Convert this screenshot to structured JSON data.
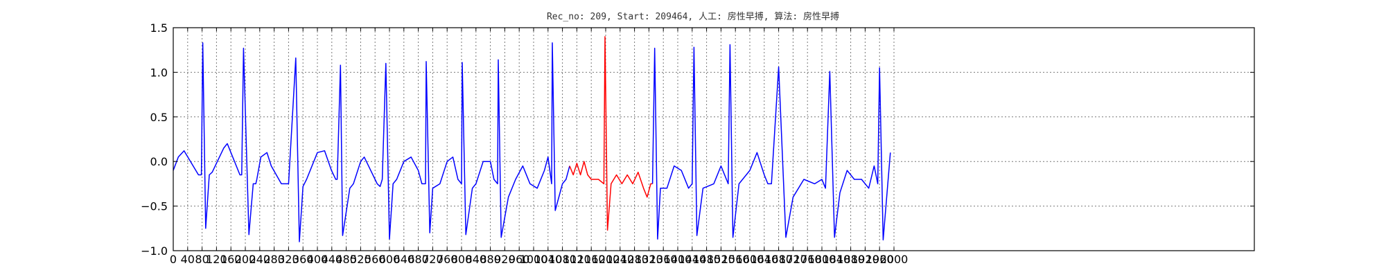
{
  "chart_data": {
    "type": "line",
    "title": "Rec_no: 209, Start: 209464, 人工: 房性早搏, 算法: 房性早搏",
    "xlabel": "",
    "ylabel": "",
    "xlim": [
      0,
      3000
    ],
    "ylim": [
      -1.0,
      1.5
    ],
    "grid": true,
    "y_ticks": [
      -1.0,
      -0.5,
      0.0,
      0.5,
      1.0,
      1.5
    ],
    "y_tick_labels": [
      "−1.0",
      "−0.5",
      "0.0",
      "0.5",
      "1.0",
      "1.5"
    ],
    "x_tick_step": 40,
    "x_ticks_end": 2000,
    "signal_length": 2000,
    "colors": {
      "normal": "#0000ff",
      "highlight": "#ff0000"
    },
    "series": [
      {
        "color": "#0000ff",
        "x": [
          0,
          14,
          30,
          70,
          78,
          82,
          90,
          100,
          108,
          140,
          150,
          160,
          185,
          190,
          195,
          210,
          222,
          229,
          232,
          243,
          260,
          272,
          300,
          320,
          340,
          350,
          360,
          370,
          400,
          420,
          439,
          451,
          455,
          464,
          470,
          490,
          500,
          520,
          530,
          560,
          566,
          574,
          580,
          590,
          600,
          610,
          620,
          640
        ],
        "y": [
          -0.1,
          0.05,
          0.12,
          -0.15,
          -0.15,
          1.33,
          -0.75,
          -0.15,
          -0.12,
          0.15,
          0.2,
          0.1,
          -0.15,
          -0.15,
          1.27,
          -0.82,
          -0.25,
          -0.25,
          -0.2,
          0.05,
          0.1,
          -0.05,
          -0.25,
          -0.25,
          1.16,
          -0.9,
          -0.28,
          -0.2,
          0.1,
          0.12,
          -0.1,
          -0.2,
          -0.2,
          1.08,
          -0.83,
          -0.3,
          -0.25,
          0.0,
          0.05,
          -0.2,
          -0.25,
          -0.28,
          -0.2,
          1.1,
          -0.87,
          -0.25,
          -0.2,
          0.0
        ]
      },
      {
        "color": "#0000ff",
        "x": [
          640,
          660,
          680,
          690,
          700,
          702,
          712,
          720,
          740,
          760,
          776,
          790,
          800,
          802,
          812,
          830,
          840,
          860,
          880,
          890,
          900,
          902,
          910,
          930,
          950,
          970,
          990,
          1010,
          1030,
          1040,
          1050,
          1052,
          1060,
          1080,
          1090,
          1100
        ],
        "y": [
          0.0,
          0.05,
          -0.1,
          -0.25,
          -0.25,
          1.12,
          -0.8,
          -0.3,
          -0.25,
          0.0,
          0.05,
          -0.2,
          -0.25,
          1.11,
          -0.82,
          -0.3,
          -0.25,
          0.0,
          0.0,
          -0.2,
          -0.25,
          1.14,
          -0.85,
          -0.4,
          -0.2,
          -0.05,
          -0.25,
          -0.3,
          -0.1,
          0.05,
          -0.25,
          1.33,
          -0.55,
          -0.25,
          -0.2,
          -0.05
        ]
      },
      {
        "color": "#ff0000",
        "x": [
          1100,
          1110,
          1120,
          1130,
          1140,
          1150,
          1160,
          1180,
          1195,
          1198,
          1205,
          1215,
          1230,
          1245,
          1260,
          1275,
          1290,
          1305,
          1315,
          1325,
          1330
        ],
        "y": [
          -0.05,
          -0.15,
          -0.02,
          -0.15,
          0.0,
          -0.15,
          -0.2,
          -0.2,
          -0.25,
          1.4,
          -0.77,
          -0.25,
          -0.15,
          -0.25,
          -0.15,
          -0.25,
          -0.12,
          -0.3,
          -0.4,
          -0.25,
          -0.25
        ]
      },
      {
        "color": "#0000ff",
        "x": [
          1330,
          1336,
          1344,
          1352,
          1370,
          1390,
          1410,
          1430,
          1440,
          1445,
          1453,
          1470,
          1500,
          1520,
          1540,
          1545,
          1553,
          1570,
          1600,
          1620,
          1640,
          1650,
          1660,
          1680,
          1700,
          1720,
          1750,
          1780,
          1800,
          1810,
          1822,
          1835,
          1850,
          1870,
          1890,
          1910,
          1930,
          1945,
          1955,
          1960,
          1970,
          1990
        ],
        "y": [
          -0.25,
          1.27,
          -0.87,
          -0.3,
          -0.3,
          -0.05,
          -0.1,
          -0.3,
          -0.25,
          1.28,
          -0.83,
          -0.3,
          -0.25,
          -0.05,
          -0.25,
          1.31,
          -0.85,
          -0.25,
          -0.1,
          0.1,
          -0.15,
          -0.25,
          -0.25,
          1.06,
          -0.85,
          -0.4,
          -0.2,
          -0.25,
          -0.2,
          -0.3,
          1.01,
          -0.85,
          -0.35,
          -0.1,
          -0.2,
          -0.2,
          -0.3,
          -0.05,
          -0.25,
          1.05,
          -0.88,
          0.1
        ]
      }
    ]
  }
}
